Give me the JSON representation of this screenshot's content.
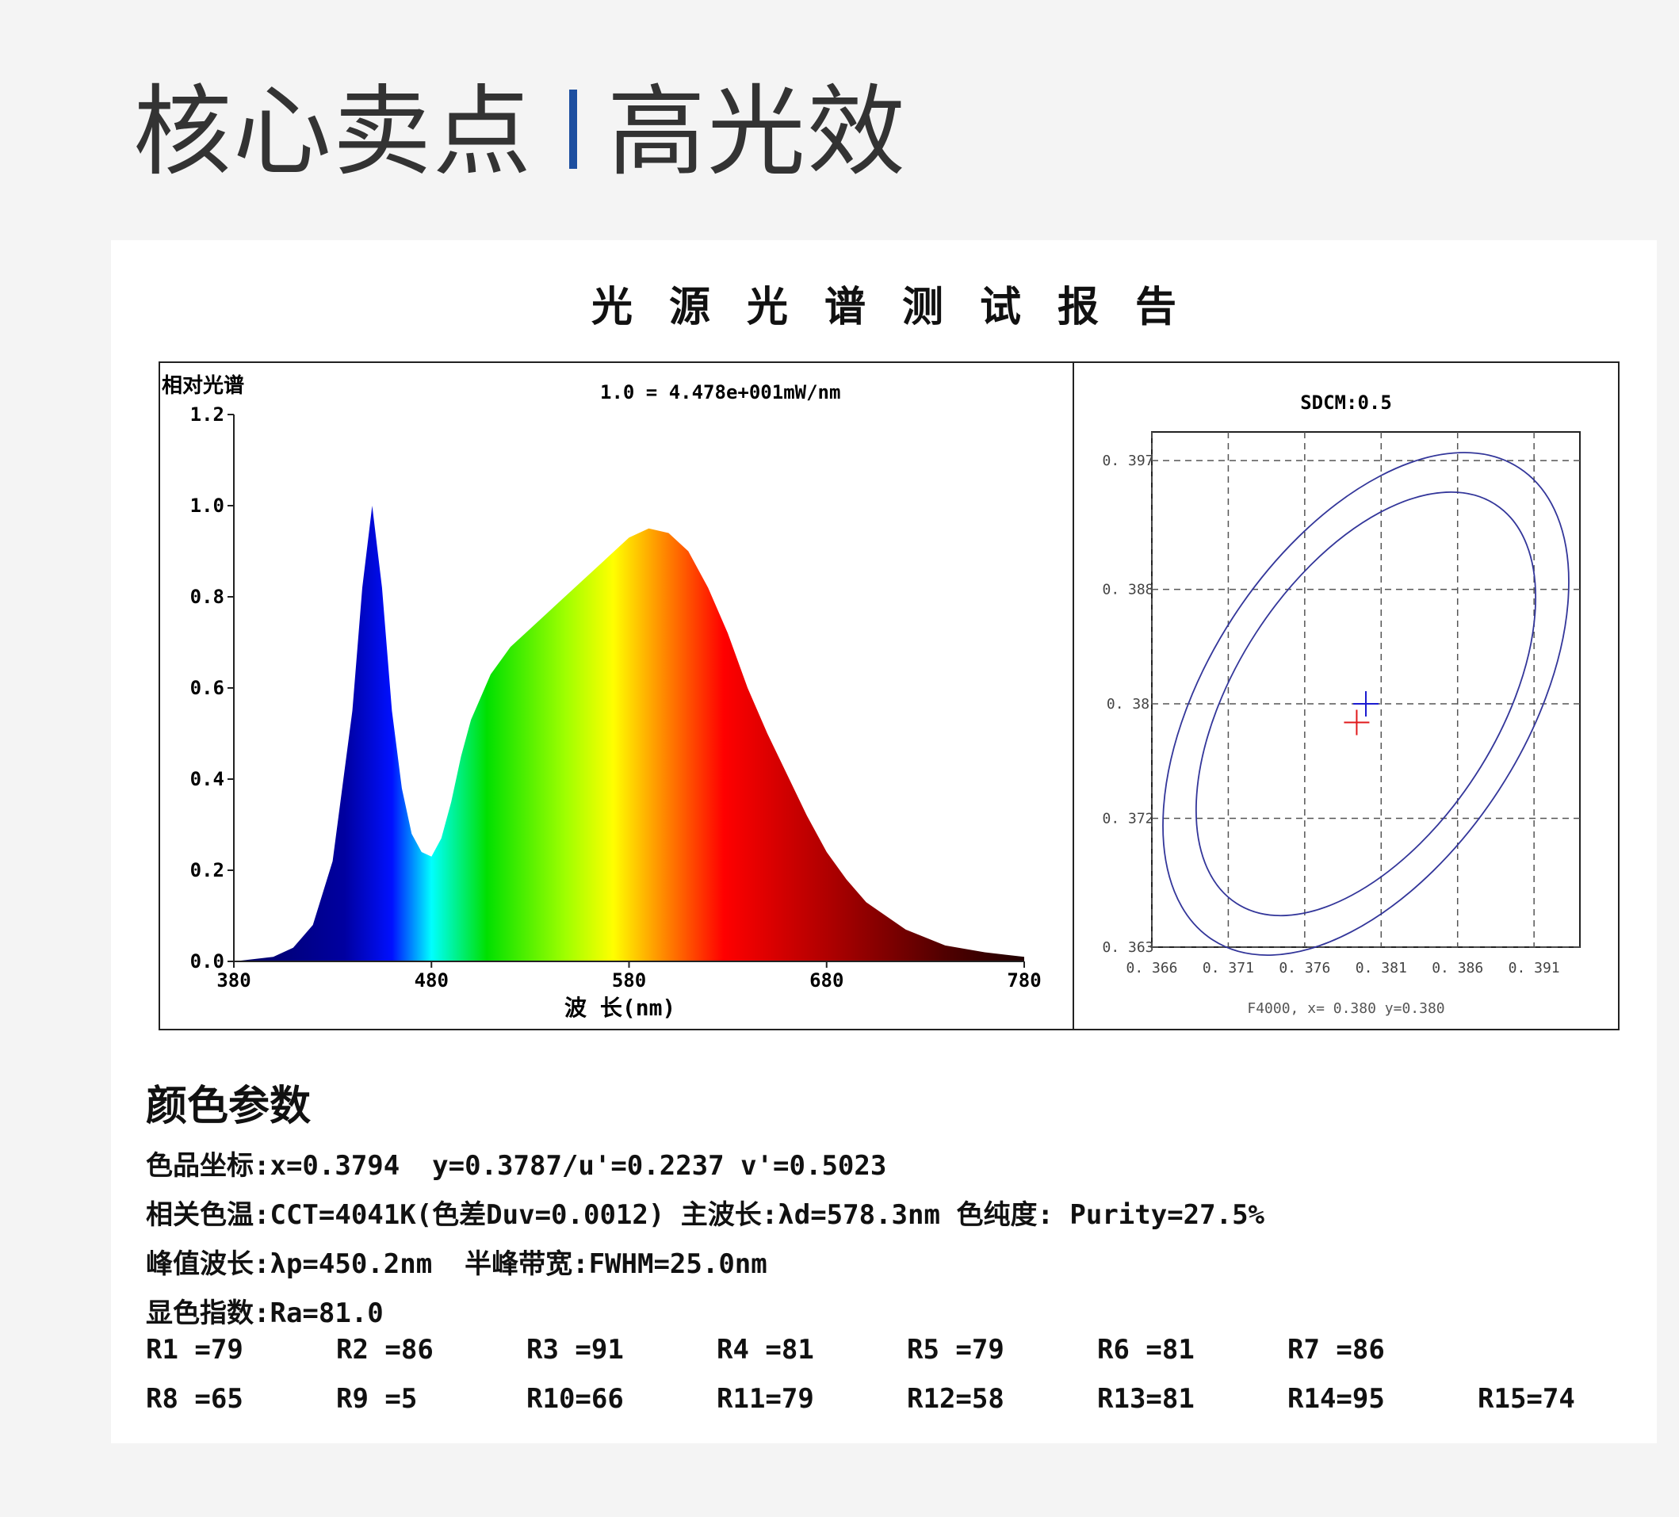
{
  "header": {
    "title_left": "核心卖点",
    "title_right": "高光效",
    "accent_color": "#1d4fa0"
  },
  "report": {
    "title": "光源光谱测试报告"
  },
  "chart_data": [
    {
      "type": "area",
      "ylabel": "相对光谱",
      "annotation": "1.0 = 4.478e+001mW/nm",
      "xlabel": "波 长(nm)",
      "xlim": [
        380,
        780
      ],
      "ylim": [
        0,
        1.2
      ],
      "x_ticks": [
        "380",
        "480",
        "580",
        "680",
        "780"
      ],
      "y_ticks": [
        "0.0",
        "0.2",
        "0.4",
        "0.6",
        "0.8",
        "1.0",
        "1.2"
      ],
      "series": [
        {
          "x": [
            380,
            400,
            410,
            420,
            430,
            440,
            445,
            450,
            455,
            460,
            465,
            470,
            475,
            480,
            485,
            490,
            495,
            500,
            510,
            520,
            530,
            540,
            550,
            560,
            570,
            580,
            590,
            600,
            610,
            620,
            630,
            640,
            650,
            660,
            670,
            680,
            690,
            700,
            720,
            740,
            760,
            780
          ],
          "values": [
            0.0,
            0.01,
            0.03,
            0.08,
            0.22,
            0.55,
            0.82,
            1.0,
            0.82,
            0.55,
            0.38,
            0.28,
            0.24,
            0.23,
            0.27,
            0.35,
            0.45,
            0.53,
            0.63,
            0.69,
            0.73,
            0.77,
            0.81,
            0.85,
            0.89,
            0.93,
            0.95,
            0.94,
            0.9,
            0.82,
            0.72,
            0.6,
            0.5,
            0.41,
            0.32,
            0.24,
            0.18,
            0.13,
            0.07,
            0.035,
            0.02,
            0.01
          ]
        }
      ]
    },
    {
      "type": "scatter",
      "title": "SDCM:0.5",
      "caption": "F4000, x= 0.380 y=0.380",
      "xlim": [
        0.366,
        0.394
      ],
      "ylim": [
        0.363,
        0.399
      ],
      "x_ticks": [
        "0.366",
        "0.371",
        "0.376",
        "0.381",
        "0.386",
        "0.391"
      ],
      "y_ticks": [
        "0.397",
        "0.388",
        "0.38",
        "0.372",
        "0.363"
      ],
      "grid": "dashed",
      "ellipse_color": "#33369a",
      "points": [
        {
          "x": 0.38,
          "y": 0.38,
          "color": "#1b1bd0"
        },
        {
          "x": 0.3794,
          "y": 0.3787,
          "color": "#e0191b"
        }
      ]
    }
  ],
  "params": {
    "heading": "颜色参数",
    "lines": [
      "色品坐标:x=0.3794  y=0.3787/u'=0.2237 v'=0.5023",
      "相关色温:CCT=4041K(色差Duv=0.0012) 主波长:λd=578.3nm 色纯度: Purity=27.5%",
      "峰值波长:λp=450.2nm  半峰带宽:FWHM=25.0nm",
      "显色指数:Ra=81.0"
    ],
    "r_row1": [
      "R1 =79",
      "R2 =86",
      "R3 =91",
      "R4 =81",
      "R5 =79",
      "R6 =81",
      "R7 =86"
    ],
    "r_row2": [
      "R8 =65",
      "R9 =5",
      "R10=66",
      "R11=79",
      "R12=58",
      "R13=81",
      "R14=95",
      "R15=74"
    ]
  }
}
